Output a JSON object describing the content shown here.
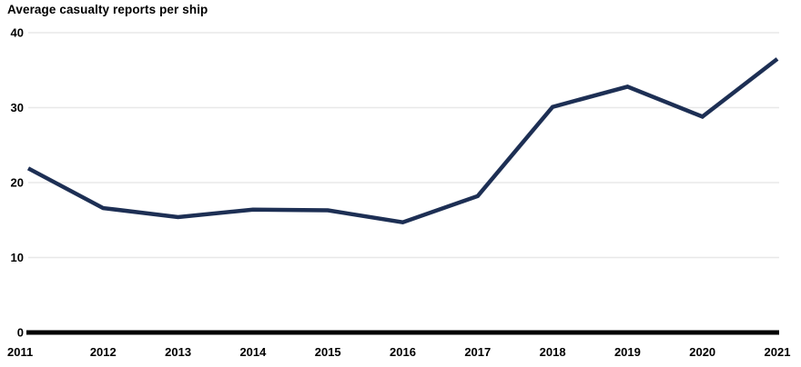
{
  "title": "Average casualty reports per ship",
  "colors": {
    "line": "#1d2f54",
    "gridline": "#e8e8e8",
    "axis": "#000000",
    "text": "#000000",
    "background": "#ffffff"
  },
  "chart_data": {
    "type": "line",
    "title": "Average casualty reports per ship",
    "categories": [
      "2011",
      "2012",
      "2013",
      "2014",
      "2015",
      "2016",
      "2017",
      "2018",
      "2019",
      "2020",
      "2021"
    ],
    "values": [
      21.9,
      16.6,
      15.4,
      16.4,
      16.3,
      14.7,
      18.2,
      30.1,
      32.8,
      28.8,
      36.5
    ],
    "series": [
      {
        "name": "Average casualty reports per ship",
        "values": [
          21.9,
          16.6,
          15.4,
          16.4,
          16.3,
          14.7,
          18.2,
          30.1,
          32.8,
          28.8,
          36.5
        ]
      }
    ],
    "xlabel": "",
    "ylabel": "Average casualty reports per ship",
    "ylim": [
      0,
      40
    ],
    "yticks": [
      0,
      10,
      20,
      30,
      40
    ],
    "grid": true,
    "legend": "none"
  }
}
